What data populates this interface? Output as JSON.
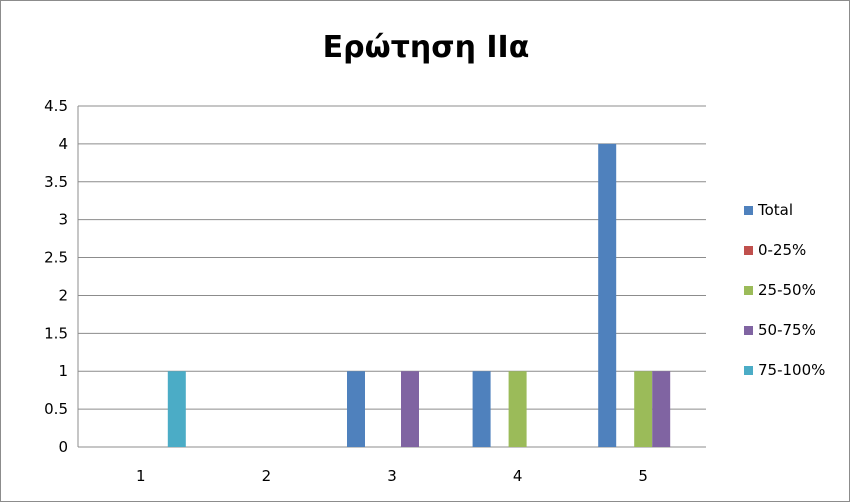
{
  "chart_data": {
    "type": "bar",
    "title": "Ερώτηση IIα",
    "categories": [
      "1",
      "2",
      "3",
      "4",
      "5"
    ],
    "series": [
      {
        "name": "Total",
        "color": "#4f81bd",
        "values": [
          0,
          0,
          1,
          1,
          4
        ]
      },
      {
        "name": "0-25%",
        "color": "#c0504d",
        "values": [
          0,
          0,
          0,
          0,
          0
        ]
      },
      {
        "name": "25-50%",
        "color": "#9bbb59",
        "values": [
          0,
          0,
          0,
          1,
          1
        ]
      },
      {
        "name": "50-75%",
        "color": "#8064a2",
        "values": [
          0,
          0,
          1,
          0,
          1
        ]
      },
      {
        "name": "75-100%",
        "color": "#4bacc6",
        "values": [
          1,
          0,
          0,
          0,
          0
        ]
      }
    ],
    "ylim": [
      0,
      4.5
    ],
    "yticks": [
      "0",
      "0.5",
      "1",
      "1.5",
      "2",
      "2.5",
      "3",
      "3.5",
      "4",
      "4.5"
    ],
    "grid": true,
    "legend": "right"
  }
}
